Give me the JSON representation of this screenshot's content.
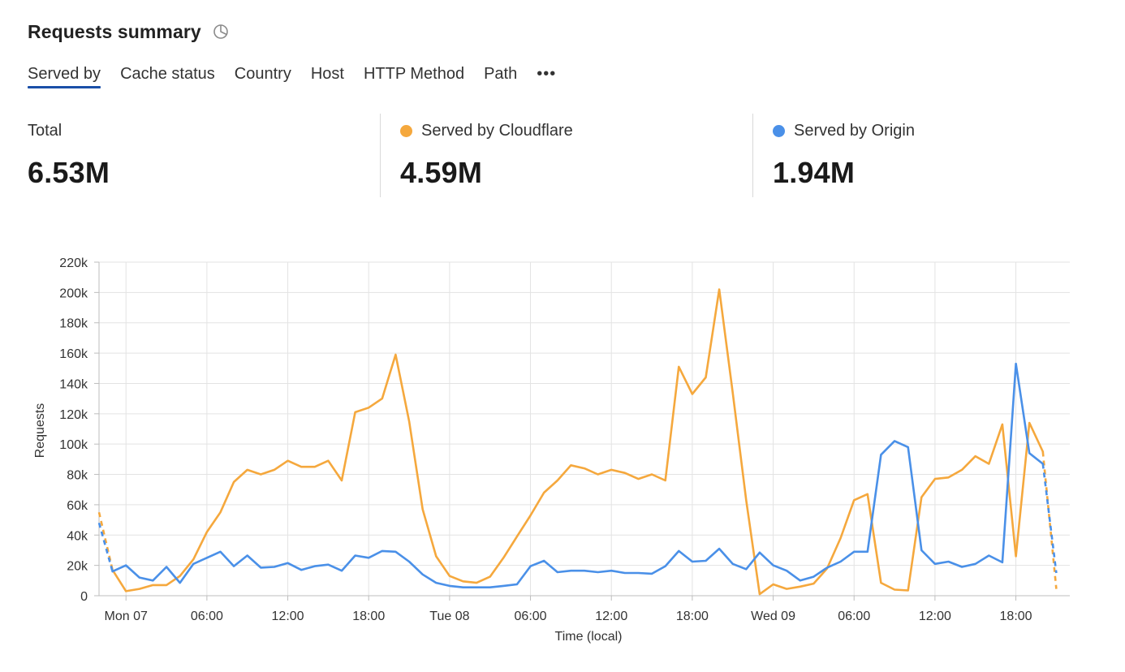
{
  "header": {
    "title": "Requests summary",
    "icon": "pie-chart-icon"
  },
  "tabs": [
    {
      "label": "Served by",
      "active": true
    },
    {
      "label": "Cache status",
      "active": false
    },
    {
      "label": "Country",
      "active": false
    },
    {
      "label": "Host",
      "active": false
    },
    {
      "label": "HTTP Method",
      "active": false
    },
    {
      "label": "Path",
      "active": false
    }
  ],
  "tabs_more": "•••",
  "stats": [
    {
      "label": "Total",
      "value": "6.53M",
      "color": null
    },
    {
      "label": "Served by Cloudflare",
      "value": "4.59M",
      "color": "#f5a83d"
    },
    {
      "label": "Served by Origin",
      "value": "1.94M",
      "color": "#4a90e8"
    }
  ],
  "chart_data": {
    "type": "line",
    "xlabel": "Time (local)",
    "ylabel": "Requests",
    "ylim": [
      0,
      220000
    ],
    "yticks": [
      0,
      20000,
      40000,
      60000,
      80000,
      100000,
      120000,
      140000,
      160000,
      180000,
      200000,
      220000
    ],
    "ytick_labels": [
      "0",
      "20k",
      "40k",
      "60k",
      "80k",
      "100k",
      "120k",
      "140k",
      "160k",
      "180k",
      "200k",
      "220k"
    ],
    "xlim_hours": [
      -2,
      70
    ],
    "xticks": [
      {
        "hour": 0,
        "label": "Mon 07"
      },
      {
        "hour": 6,
        "label": "06:00"
      },
      {
        "hour": 12,
        "label": "12:00"
      },
      {
        "hour": 18,
        "label": "18:00"
      },
      {
        "hour": 24,
        "label": "Tue 08"
      },
      {
        "hour": 30,
        "label": "06:00"
      },
      {
        "hour": 36,
        "label": "12:00"
      },
      {
        "hour": 42,
        "label": "18:00"
      },
      {
        "hour": 48,
        "label": "Wed 09"
      },
      {
        "hour": 54,
        "label": "06:00"
      },
      {
        "hour": 60,
        "label": "12:00"
      },
      {
        "hour": 66,
        "label": "18:00"
      }
    ],
    "grid": true,
    "series": [
      {
        "name": "Served by Cloudflare",
        "color": "#f5a83d",
        "start_hour": -2,
        "dashed_first_segment": true,
        "dashed_last_segment": true,
        "values": [
          55000,
          17000,
          3000,
          4500,
          7000,
          7000,
          13000,
          24000,
          42000,
          55000,
          75000,
          83000,
          80000,
          83000,
          89000,
          85000,
          85000,
          89000,
          76000,
          121000,
          124000,
          130000,
          159000,
          115000,
          57000,
          26000,
          13000,
          9500,
          8500,
          12500,
          25000,
          39000,
          53000,
          68000,
          76000,
          86000,
          84000,
          80000,
          83000,
          81000,
          77000,
          80000,
          76000,
          151000,
          133000,
          144000,
          202000,
          134000,
          63000,
          1000,
          7500,
          4500,
          6000,
          8000,
          18000,
          38000,
          63000,
          67000,
          8500,
          4000,
          3500,
          65000,
          77000,
          78000,
          83000,
          92000,
          87000,
          113000,
          26000,
          114000,
          95000,
          4500
        ]
      },
      {
        "name": "Served by Origin",
        "color": "#4a90e8",
        "start_hour": -2,
        "dashed_first_segment": true,
        "dashed_last_segment": true,
        "values": [
          48000,
          16000,
          20000,
          12000,
          10000,
          19000,
          8500,
          21000,
          25000,
          29000,
          19500,
          26500,
          18500,
          19000,
          21500,
          17000,
          19500,
          20500,
          16500,
          26500,
          25000,
          29500,
          29000,
          22500,
          14000,
          8500,
          6500,
          5500,
          5500,
          5500,
          6500,
          7500,
          19500,
          23000,
          15500,
          16500,
          16500,
          15500,
          16500,
          15000,
          15000,
          14500,
          19500,
          29500,
          22500,
          23000,
          31000,
          21000,
          17500,
          28500,
          20000,
          16500,
          10000,
          12500,
          18500,
          22500,
          29000,
          29000,
          93000,
          102000,
          98000,
          30000,
          21000,
          22500,
          19000,
          21000,
          26500,
          22000,
          153000,
          94000,
          87000,
          15000
        ]
      }
    ]
  }
}
